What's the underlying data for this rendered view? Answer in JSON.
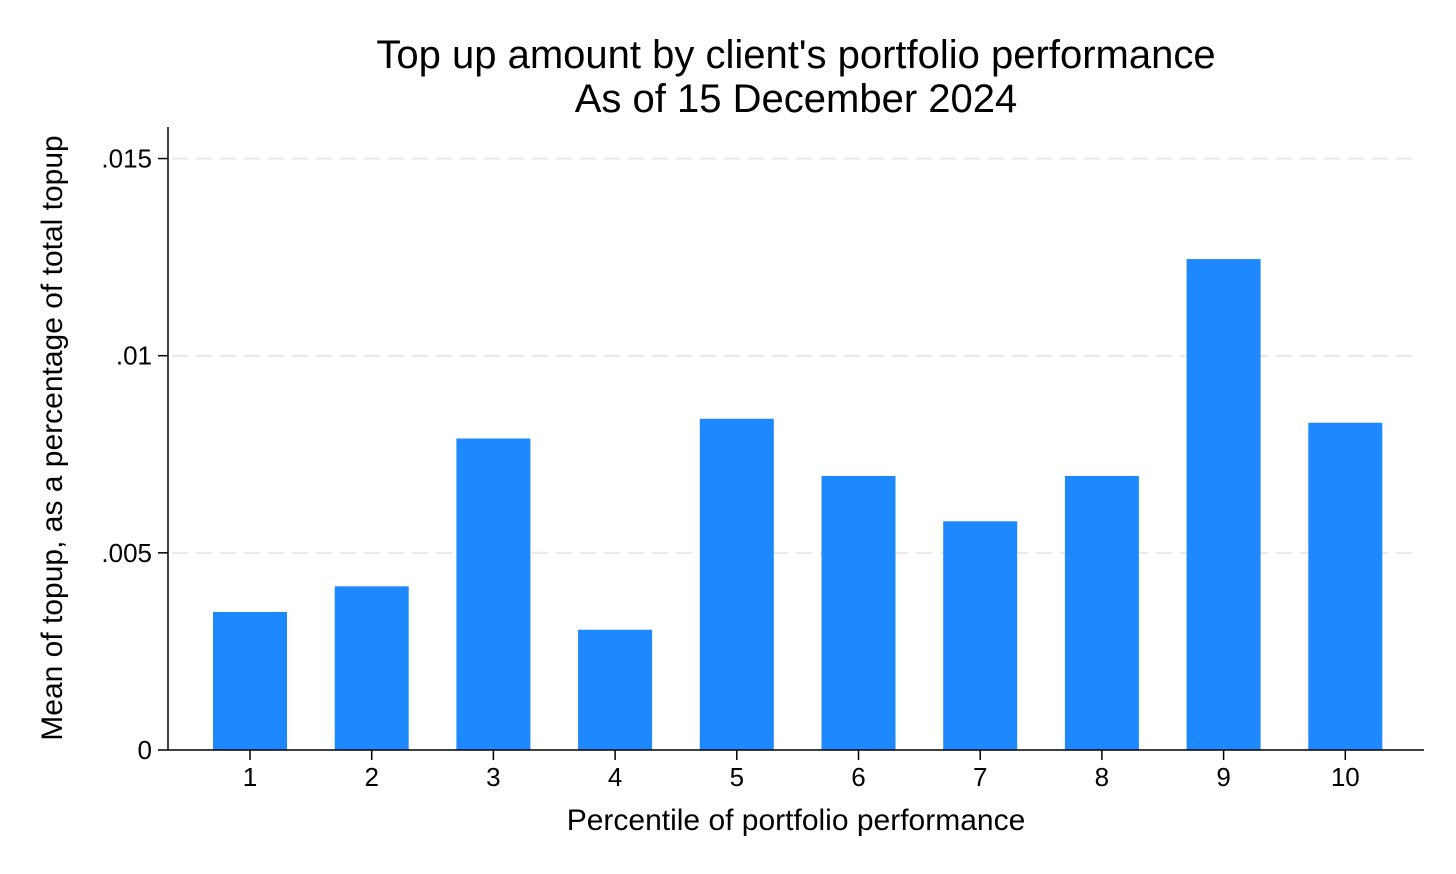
{
  "chart_data": {
    "type": "bar",
    "title": "Top up amount by client's portfolio performance",
    "subtitle": "As of 15 December 2024",
    "xlabel": "Percentile of portfolio performance",
    "ylabel": "Mean of topup, as a percentage of total topup",
    "categories": [
      "1",
      "2",
      "3",
      "4",
      "5",
      "6",
      "7",
      "8",
      "9",
      "10"
    ],
    "values": [
      0.0035,
      0.00415,
      0.0079,
      0.00305,
      0.0084,
      0.00695,
      0.0058,
      0.00695,
      0.01245,
      0.0083
    ],
    "ylim": [
      0,
      0.0158
    ],
    "yticks": [
      0,
      0.005,
      0.01,
      0.015
    ],
    "ytick_labels": [
      "0",
      ".005",
      ".01",
      ".015"
    ],
    "grid": true,
    "legend": "none",
    "bar_color": "#1e88ff",
    "grid_color": "#e8e8e8"
  }
}
